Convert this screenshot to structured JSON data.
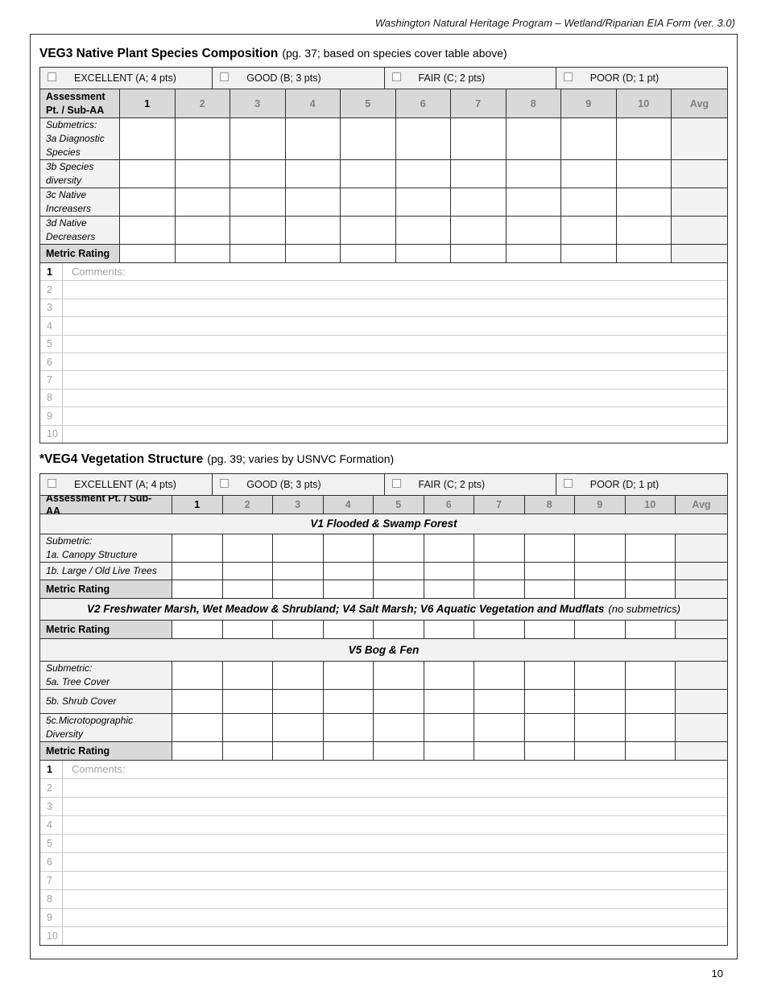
{
  "page": {
    "header": "Washington Natural Heritage Program – Wetland/Riparian EIA Form (ver. 3.0)",
    "page_number": "10"
  },
  "rating_scale": [
    "EXCELLENT (A; 4 pts)",
    "GOOD (B; 3 pts)",
    "FAIR (C; 2 pts)",
    "POOR (D; 1 pt)"
  ],
  "table_columns": [
    "1",
    "2",
    "3",
    "4",
    "5",
    "6",
    "7",
    "8",
    "9",
    "10",
    "Avg"
  ],
  "veg3": {
    "title": "VEG3 Native Plant Species Composition",
    "subtitle": "(pg. 37; based on species cover table above)",
    "header_label": "Assessment\nPt. / Sub-AA",
    "rows": {
      "r3a": "Submetrics:\n3a Diagnostic\nSpecies",
      "r3b": "3b Species\ndiversity",
      "r3c": "3c Native\nIncreasers",
      "r3d": "3d Native\nDecreasers"
    },
    "metric_rating_label": "Metric Rating",
    "comments_placeholder": "Comments:",
    "comment_rows": [
      "1",
      "2",
      "3",
      "4",
      "5",
      "6",
      "7",
      "8",
      "9",
      "10"
    ]
  },
  "veg4": {
    "title": "*VEG4 Vegetation Structure",
    "subtitle": "(pg. 39; varies by USNVC Formation)",
    "header_label": "Assessment Pt. / Sub-AA",
    "bands": {
      "v1": {
        "text": "V1 Flooded & Swamp Forest",
        "suffix": ""
      },
      "v2": {
        "text": "V2 Freshwater Marsh, Wet Meadow & Shrubland; V4 Salt Marsh; V6 Aquatic Vegetation and Mudflats",
        "suffix": "(no submetrics)"
      },
      "v5": {
        "text": "V5 Bog & Fen",
        "suffix": ""
      }
    },
    "rows": {
      "r1a": "Submetric:\n1a. Canopy Structure",
      "r1b": "1b. Large / Old Live Trees",
      "r5a": "Submetric:\n5a. Tree  Cover",
      "r5b": "5b. Shrub Cover",
      "r5c": "5c.Microtopographic\nDiversity"
    },
    "metric_rating_label": "Metric Rating",
    "comments_placeholder": "Comments:",
    "comment_rows": [
      "1",
      "2",
      "3",
      "4",
      "5",
      "6",
      "7",
      "8",
      "9",
      "10"
    ]
  }
}
